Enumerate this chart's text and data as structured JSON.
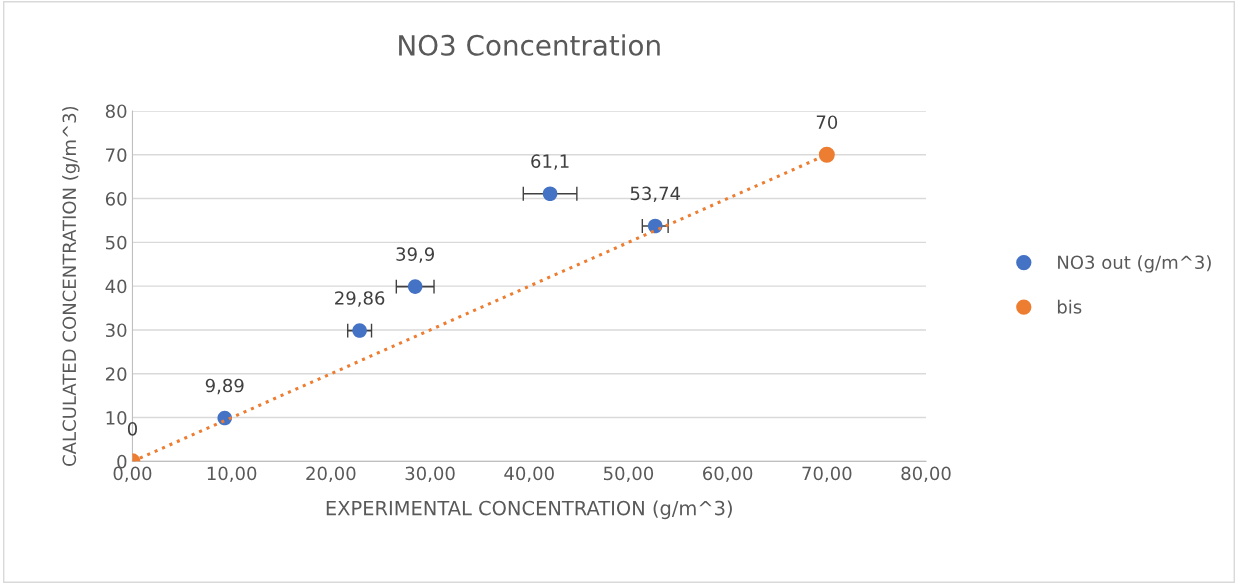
{
  "chart_data": {
    "type": "scatter",
    "title": "NO3 Concentration",
    "xlabel": "EXPERIMENTAL CONCENTRATION (g/m^3)",
    "ylabel": "CALCULATED CONCENTRATION (g/m^3)",
    "series": [
      {
        "name": "NO3 out (g/m^3)",
        "color": "#4472c4",
        "x": [
          9.3,
          22.9,
          28.5,
          42.1,
          52.7
        ],
        "values": [
          9.89,
          29.86,
          39.9,
          61.1,
          53.74
        ],
        "xerrors": [
          null,
          1.2,
          1.9,
          2.7,
          1.3
        ],
        "value_labels": [
          "9,89",
          "29,86",
          "39,9",
          "61,1",
          "53,74"
        ]
      },
      {
        "name": "bis",
        "type": "line",
        "color": "#ed7d31",
        "x": [
          0,
          70
        ],
        "values": [
          0,
          70
        ],
        "value_labels": [
          "0",
          "70"
        ],
        "marker": "circle",
        "line_style": "dotted"
      }
    ],
    "xlim": [
      0,
      80
    ],
    "ylim": [
      0,
      80
    ],
    "xticks": [
      {
        "value": 0,
        "label": "0,00"
      },
      {
        "value": 10,
        "label": "10,00"
      },
      {
        "value": 20,
        "label": "20,00"
      },
      {
        "value": 30,
        "label": "30,00"
      },
      {
        "value": 40,
        "label": "40,00"
      },
      {
        "value": 50,
        "label": "50,00"
      },
      {
        "value": 60,
        "label": "60,00"
      },
      {
        "value": 70,
        "label": "70,00"
      },
      {
        "value": 80,
        "label": "80,00"
      }
    ],
    "yticks": [
      0,
      10,
      20,
      30,
      40,
      50,
      60,
      70,
      80
    ],
    "grid": "y",
    "legend": "right",
    "marker": "circle"
  }
}
